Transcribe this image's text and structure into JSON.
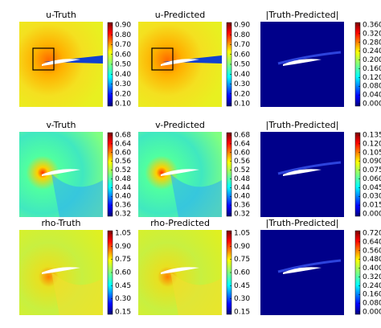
{
  "panels": [
    {
      "title": "u-Truth",
      "colorbar": [
        "0.90",
        "0.80",
        "0.70",
        "0.60",
        "0.50",
        "0.40",
        "0.30",
        "0.20",
        "0.10"
      ]
    },
    {
      "title": "u-Predicted",
      "colorbar": [
        "0.90",
        "0.80",
        "0.70",
        "0.60",
        "0.50",
        "0.40",
        "0.30",
        "0.20",
        "0.10"
      ]
    },
    {
      "title": "|Truth-Predicted|",
      "colorbar": [
        "0.360",
        "0.320",
        "0.280",
        "0.240",
        "0.200",
        "0.160",
        "0.120",
        "0.080",
        "0.040",
        "0.000"
      ]
    },
    {
      "title": "v-Truth",
      "colorbar": [
        "0.68",
        "0.64",
        "0.60",
        "0.56",
        "0.52",
        "0.48",
        "0.44",
        "0.40",
        "0.36",
        "0.32"
      ]
    },
    {
      "title": "v-Predicted",
      "colorbar": [
        "0.68",
        "0.64",
        "0.60",
        "0.56",
        "0.52",
        "0.48",
        "0.44",
        "0.40",
        "0.36",
        "0.32"
      ]
    },
    {
      "title": "|Truth-Predicted|",
      "colorbar": [
        "0.135",
        "0.120",
        "0.105",
        "0.090",
        "0.075",
        "0.060",
        "0.045",
        "0.030",
        "0.015",
        "0.000"
      ]
    },
    {
      "title": "rho-Truth",
      "colorbar": [
        "1.05",
        "0.90",
        "0.75",
        "0.60",
        "0.45",
        "0.30",
        "0.15"
      ]
    },
    {
      "title": "rho-Predicted",
      "colorbar": [
        "1.05",
        "0.90",
        "0.75",
        "0.60",
        "0.45",
        "0.30",
        "0.15"
      ]
    },
    {
      "title": "|Truth-Predicted|",
      "colorbar": [
        "0.720",
        "0.640",
        "0.560",
        "0.480",
        "0.400",
        "0.320",
        "0.240",
        "0.160",
        "0.080",
        "0.000"
      ]
    }
  ]
}
